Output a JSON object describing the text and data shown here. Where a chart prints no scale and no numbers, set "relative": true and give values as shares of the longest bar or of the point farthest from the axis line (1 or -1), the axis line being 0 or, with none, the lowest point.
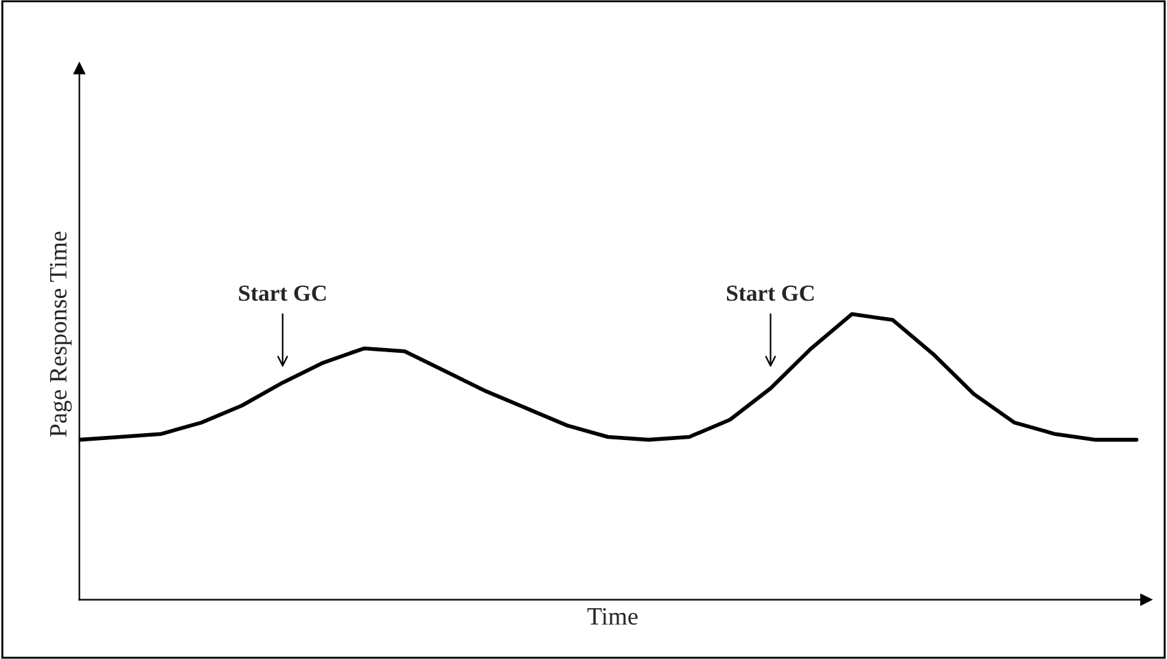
{
  "chart_data": {
    "type": "line",
    "relative": true,
    "xlabel": "Time",
    "ylabel": "Page Response Time",
    "categories": [
      null,
      null,
      null,
      null,
      null,
      null,
      null,
      null,
      null,
      null,
      null,
      null,
      null,
      null,
      null,
      null,
      null,
      null,
      null,
      null,
      null,
      null,
      null,
      null,
      null,
      null,
      null
    ],
    "series": [
      {
        "color": "#000000",
        "values": [
          0.56,
          0.57,
          0.58,
          0.62,
          0.68,
          0.76,
          0.83,
          0.88,
          0.87,
          0.8,
          0.73,
          0.67,
          0.61,
          0.57,
          0.56,
          0.57,
          0.63,
          0.74,
          0.88,
          1.0,
          0.98,
          0.86,
          0.72,
          0.62,
          0.58,
          0.56,
          0.56
        ]
      }
    ],
    "annotations": [
      "Start GC",
      "Start GC"
    ],
    "tick_labels": false,
    "marker": "none",
    "line_style": "solid"
  }
}
